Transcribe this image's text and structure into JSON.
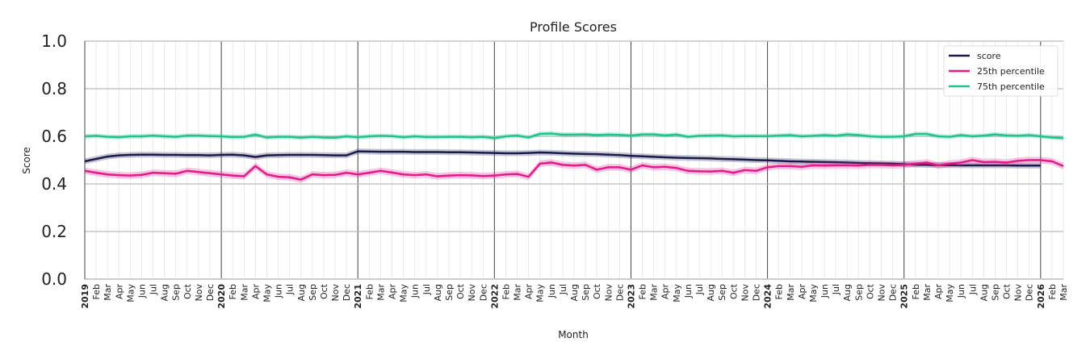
{
  "chart_data": {
    "type": "line",
    "title": "Profile Scores",
    "x_label": "Month",
    "y_label": "Score",
    "categories": [
      "2019",
      "Feb",
      "Mar",
      "Apr",
      "May",
      "Jun",
      "Jul",
      "Aug",
      "Sep",
      "Oct",
      "Nov",
      "Dec",
      "2020",
      "Feb",
      "Mar",
      "Apr",
      "May",
      "Jun",
      "Jul",
      "Aug",
      "Sep",
      "Oct",
      "Nov",
      "Dec",
      "2021",
      "Feb",
      "Mar",
      "Apr",
      "May",
      "Jun",
      "Jul",
      "Aug",
      "Sep",
      "Oct",
      "Nov",
      "Dec",
      "2022",
      "Feb",
      "Mar",
      "Apr",
      "May",
      "Jun",
      "Jul",
      "Aug",
      "Sep",
      "Oct",
      "Nov",
      "Dec",
      "2023",
      "Feb",
      "Mar",
      "Apr",
      "May",
      "Jun",
      "Jul",
      "Aug",
      "Sep",
      "Oct",
      "Nov",
      "Dec",
      "2024",
      "Feb",
      "Mar",
      "Apr",
      "May",
      "Jun",
      "Jul",
      "Aug",
      "Sep",
      "Oct",
      "Nov",
      "Dec",
      "2025",
      "Feb",
      "Mar",
      "Apr",
      "May",
      "Jun",
      "Jul",
      "Aug",
      "Sep",
      "Oct",
      "Nov",
      "Dec",
      "2026",
      "Feb",
      "Mar"
    ],
    "series": [
      {
        "name": "score",
        "color": "#1b1a4f",
        "band": 0.012,
        "values": [
          0.495,
          0.505,
          0.515,
          0.52,
          0.522,
          0.523,
          0.523,
          0.522,
          0.522,
          0.521,
          0.521,
          0.52,
          0.522,
          0.523,
          0.52,
          0.513,
          0.52,
          0.521,
          0.522,
          0.522,
          0.522,
          0.521,
          0.52,
          0.52,
          0.537,
          0.536,
          0.535,
          0.535,
          0.535,
          0.534,
          0.534,
          0.534,
          0.533,
          0.533,
          0.532,
          0.531,
          0.53,
          0.529,
          0.529,
          0.53,
          0.532,
          0.531,
          0.529,
          0.527,
          0.526,
          0.525,
          0.523,
          0.521,
          0.518,
          0.516,
          0.514,
          0.512,
          0.51,
          0.509,
          0.508,
          0.507,
          0.505,
          0.504,
          0.502,
          0.5,
          0.499,
          0.497,
          0.495,
          0.494,
          0.493,
          0.492,
          0.491,
          0.49,
          0.488,
          0.487,
          0.486,
          0.485,
          0.483,
          0.481,
          0.48,
          0.479,
          0.479,
          0.478,
          0.478,
          0.478,
          0.478,
          0.478,
          0.477,
          0.477,
          0.477,
          null,
          null
        ]
      },
      {
        "name": "25th percentile",
        "color": "#e5198a",
        "band": 0.014,
        "values": [
          0.455,
          0.447,
          0.44,
          0.437,
          0.435,
          0.438,
          0.447,
          0.445,
          0.443,
          0.455,
          0.45,
          0.445,
          0.44,
          0.435,
          0.432,
          0.475,
          0.44,
          0.43,
          0.428,
          0.418,
          0.44,
          0.437,
          0.438,
          0.447,
          0.44,
          0.447,
          0.455,
          0.448,
          0.44,
          0.437,
          0.44,
          0.432,
          0.435,
          0.437,
          0.436,
          0.433,
          0.435,
          0.44,
          0.442,
          0.43,
          0.485,
          0.49,
          0.48,
          0.477,
          0.48,
          0.46,
          0.47,
          0.47,
          0.46,
          0.478,
          0.47,
          0.472,
          0.467,
          0.455,
          0.453,
          0.452,
          0.455,
          0.447,
          0.458,
          0.455,
          0.47,
          0.475,
          0.475,
          0.472,
          0.478,
          0.477,
          0.478,
          0.478,
          0.477,
          0.48,
          0.48,
          0.478,
          0.48,
          0.485,
          0.49,
          0.478,
          0.485,
          0.49,
          0.5,
          0.492,
          0.493,
          0.49,
          0.497,
          0.5,
          0.5,
          0.495,
          0.475
        ]
      },
      {
        "name": "75th percentile",
        "color": "#21c38b",
        "band": 0.01,
        "values": [
          0.6,
          0.602,
          0.598,
          0.596,
          0.6,
          0.6,
          0.603,
          0.6,
          0.598,
          0.603,
          0.603,
          0.601,
          0.6,
          0.597,
          0.598,
          0.607,
          0.595,
          0.598,
          0.598,
          0.594,
          0.598,
          0.595,
          0.594,
          0.6,
          0.596,
          0.6,
          0.602,
          0.601,
          0.596,
          0.6,
          0.597,
          0.597,
          0.598,
          0.598,
          0.596,
          0.598,
          0.592,
          0.6,
          0.603,
          0.595,
          0.61,
          0.612,
          0.607,
          0.607,
          0.608,
          0.605,
          0.607,
          0.606,
          0.603,
          0.608,
          0.608,
          0.604,
          0.607,
          0.598,
          0.602,
          0.603,
          0.604,
          0.6,
          0.601,
          0.601,
          0.601,
          0.603,
          0.605,
          0.6,
          0.602,
          0.605,
          0.602,
          0.608,
          0.605,
          0.6,
          0.598,
          0.598,
          0.6,
          0.61,
          0.61,
          0.6,
          0.598,
          0.605,
          0.6,
          0.603,
          0.608,
          0.604,
          0.602,
          0.605,
          0.6,
          0.595,
          0.593
        ]
      }
    ],
    "ylim": [
      0,
      1
    ],
    "yticks": [
      {
        "value": 0,
        "label": "0.0"
      },
      0.2,
      0.4,
      0.6,
      0.8,
      {
        "value": 1,
        "label": "1.0"
      }
    ],
    "grid": true,
    "legend": "upper right"
  }
}
